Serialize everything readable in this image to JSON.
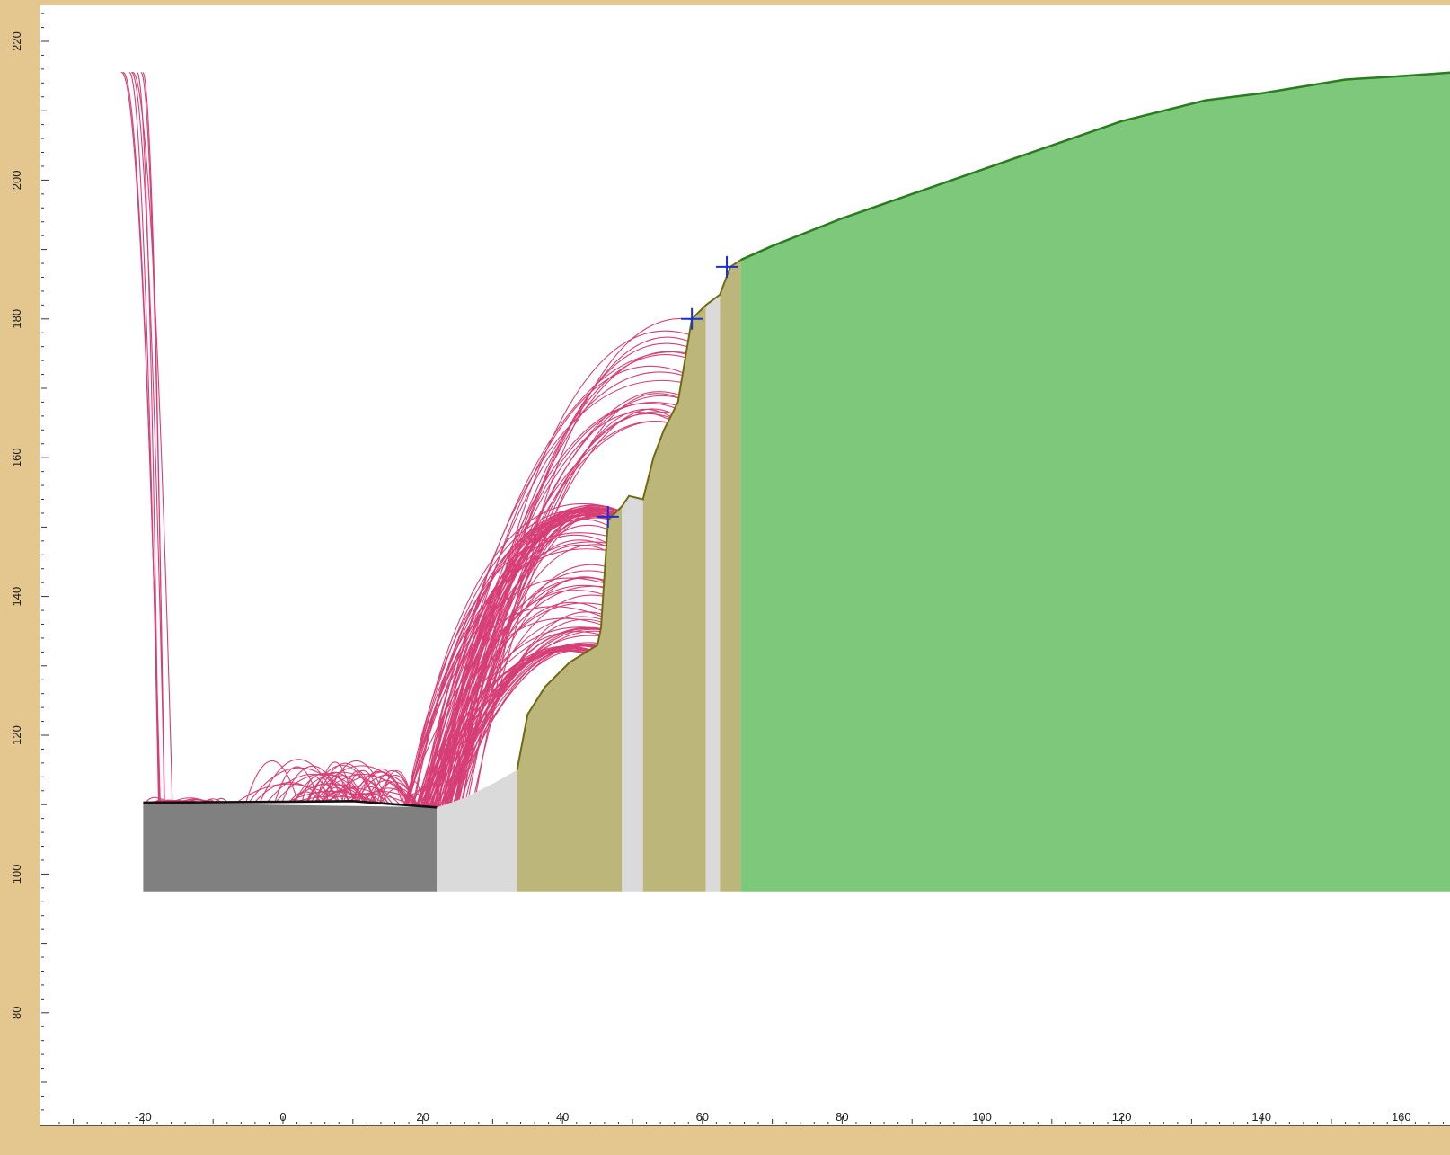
{
  "chart_data": {
    "type": "area",
    "title": "",
    "xlabel": "",
    "ylabel": "",
    "xlim": [
      -34,
      167
    ],
    "ylim": [
      65,
      225
    ],
    "x_ticks": [
      -20,
      0,
      20,
      40,
      60,
      80,
      100,
      120,
      140,
      160
    ],
    "y_ticks": [
      80,
      100,
      120,
      140,
      160,
      180,
      200,
      220
    ],
    "grid": false,
    "base_elevation": 97.5,
    "colors": {
      "background": "#e4c78f",
      "plot_area": "#ffffff",
      "pavement": "#808080",
      "light_gray": "#dadada",
      "tan": "#bdb67a",
      "green": "#7ec87c",
      "green_line": "#2a7d1f",
      "olive_line": "#6f6a12",
      "trajectory": "#d63e75",
      "seeder": "#1a2fd8"
    },
    "material_regions": [
      {
        "material": "pavement",
        "polygon": [
          [
            -20,
            110.3
          ],
          [
            22,
            109.6
          ],
          [
            22,
            97.5
          ],
          [
            -20,
            97.5
          ]
        ]
      },
      {
        "material": "light_gray",
        "polygon": [
          [
            22,
            109.6
          ],
          [
            26,
            111
          ],
          [
            30,
            113
          ],
          [
            33.5,
            115
          ],
          [
            33.5,
            97.5
          ],
          [
            22,
            97.5
          ]
        ]
      },
      {
        "material": "tan",
        "polygon": [
          [
            33.5,
            115
          ],
          [
            35,
            123
          ],
          [
            37.5,
            127
          ],
          [
            41,
            130.5
          ],
          [
            45,
            133
          ],
          [
            45.5,
            135.5
          ],
          [
            46.5,
            151
          ],
          [
            48.5,
            153
          ],
          [
            48.5,
            97.5
          ],
          [
            33.5,
            97.5
          ]
        ]
      },
      {
        "material": "light_gray",
        "polygon": [
          [
            48.5,
            153
          ],
          [
            49.5,
            154.5
          ],
          [
            51.5,
            154
          ],
          [
            51.5,
            97.5
          ],
          [
            48.5,
            97.5
          ]
        ]
      },
      {
        "material": "tan",
        "polygon": [
          [
            51.5,
            154
          ],
          [
            53,
            160
          ],
          [
            54.5,
            164
          ],
          [
            56.5,
            168
          ],
          [
            58.5,
            180
          ],
          [
            60.5,
            182
          ],
          [
            60.5,
            97.5
          ],
          [
            51.5,
            97.5
          ]
        ]
      },
      {
        "material": "light_gray",
        "polygon": [
          [
            60.5,
            182
          ],
          [
            62.5,
            183.5
          ],
          [
            62.5,
            97.5
          ],
          [
            60.5,
            97.5
          ]
        ]
      },
      {
        "material": "tan",
        "polygon": [
          [
            62.5,
            183.5
          ],
          [
            64,
            187.5
          ],
          [
            65.5,
            188.5
          ],
          [
            65.5,
            97.5
          ],
          [
            62.5,
            97.5
          ]
        ]
      },
      {
        "material": "green",
        "polygon": [
          [
            65.5,
            188.5
          ],
          [
            70,
            190.5
          ],
          [
            80,
            194.5
          ],
          [
            90,
            198
          ],
          [
            100,
            201.5
          ],
          [
            110,
            205
          ],
          [
            120,
            208.5
          ],
          [
            132,
            211.5
          ],
          [
            140,
            212.5
          ],
          [
            152,
            214.5
          ],
          [
            160,
            215
          ],
          [
            167,
            215.5
          ],
          [
            167,
            97.5
          ],
          [
            65.5,
            97.5
          ]
        ]
      }
    ],
    "slope_profile": [
      [
        -20,
        110.3
      ],
      [
        0,
        110.4
      ],
      [
        10,
        110.5
      ],
      [
        22,
        109.6
      ],
      [
        26,
        111
      ],
      [
        30,
        113
      ],
      [
        33.5,
        115
      ],
      [
        35,
        123
      ],
      [
        37.5,
        127
      ],
      [
        41,
        130.5
      ],
      [
        45,
        133
      ],
      [
        45.5,
        135.5
      ],
      [
        46.5,
        151
      ],
      [
        48.5,
        153
      ],
      [
        49.5,
        154.5
      ],
      [
        51.5,
        154
      ],
      [
        53,
        160
      ],
      [
        54.5,
        164
      ],
      [
        56.5,
        168
      ],
      [
        58.5,
        180
      ],
      [
        60.5,
        182
      ],
      [
        62.5,
        183.5
      ],
      [
        64,
        187.5
      ],
      [
        65.5,
        188.5
      ],
      [
        70,
        190.5
      ],
      [
        80,
        194.5
      ],
      [
        90,
        198
      ],
      [
        100,
        201.5
      ],
      [
        110,
        205
      ],
      [
        120,
        208.5
      ],
      [
        132,
        211.5
      ],
      [
        140,
        212.5
      ],
      [
        152,
        214.5
      ],
      [
        160,
        215
      ],
      [
        167,
        215.5
      ]
    ],
    "seeders": [
      {
        "x": 46.5,
        "y": 151.5
      },
      {
        "x": 58.5,
        "y": 180
      },
      {
        "x": 63.5,
        "y": 187.5
      }
    ]
  }
}
